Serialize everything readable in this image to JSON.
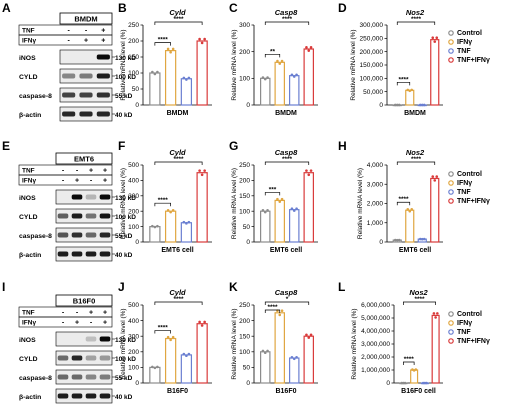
{
  "panel_letters": [
    "A",
    "B",
    "C",
    "D",
    "E",
    "F",
    "G",
    "H",
    "I",
    "J",
    "K",
    "L"
  ],
  "legend": {
    "items": [
      {
        "label": "Control",
        "color": "#8c8c8c"
      },
      {
        "label": "IFNγ",
        "color": "#e0a640"
      },
      {
        "label": "TNF",
        "color": "#6a7fd1"
      },
      {
        "label": "TNF+IFNγ",
        "color": "#d93a3a"
      }
    ]
  },
  "blots": [
    {
      "id": "A",
      "cell_line": "BMDM",
      "treatments": [
        {
          "label": "TNF",
          "marks": [
            "-",
            "-",
            "+"
          ]
        },
        {
          "label": "IFNγ",
          "marks": [
            "-",
            "+",
            "+"
          ]
        }
      ],
      "bands": [
        {
          "label": "iNOS",
          "kd": "130 kD"
        },
        {
          "label": "CYLD",
          "kd": "100 kD"
        },
        {
          "label": "caspase-8",
          "kd": "55 kD"
        },
        {
          "label": "β-actin",
          "kd": "40 kD"
        }
      ]
    },
    {
      "id": "E",
      "cell_line": "EMT6",
      "treatments": [
        {
          "label": "TNF",
          "marks": [
            "-",
            "-",
            "+",
            "+"
          ]
        },
        {
          "label": "IFNγ",
          "marks": [
            "-",
            "+",
            "-",
            "+"
          ]
        }
      ],
      "bands": [
        {
          "label": "iNOS",
          "kd": "130 kD"
        },
        {
          "label": "CYLD",
          "kd": "100 kD"
        },
        {
          "label": "caspase-8",
          "kd": "55 kD"
        },
        {
          "label": "β-actin",
          "kd": "40 kD"
        }
      ]
    },
    {
      "id": "I",
      "cell_line": "B16F0",
      "treatments": [
        {
          "label": "TNF",
          "marks": [
            "-",
            "-",
            "+",
            "+"
          ]
        },
        {
          "label": "IFNγ",
          "marks": [
            "-",
            "+",
            "-",
            "+"
          ]
        }
      ],
      "bands": [
        {
          "label": "iNOS",
          "kd": "130 kD"
        },
        {
          "label": "CYLD",
          "kd": "100 kD"
        },
        {
          "label": "caspase-8",
          "kd": "55 kD"
        },
        {
          "label": "β-actin",
          "kd": "40 kD"
        }
      ]
    }
  ],
  "chart_data": [
    {
      "id": "B",
      "type": "bar",
      "title": "Cyld",
      "xlabel": "BMDM",
      "ylabel": "Relative mRNA level (%)",
      "categories": [
        "Control",
        "IFNγ",
        "TNF",
        "TNF+IFNγ"
      ],
      "values": [
        100,
        170,
        82,
        200
      ],
      "ylim": [
        0,
        250
      ],
      "yticks": [
        0,
        50,
        100,
        150,
        200,
        250
      ],
      "significance": [
        "****",
        "****"
      ]
    },
    {
      "id": "C",
      "type": "bar",
      "title": "Casp8",
      "xlabel": "BMDM",
      "ylabel": "Relative mRNA level (%)",
      "categories": [
        "Control",
        "IFNγ",
        "TNF",
        "TNF+IFNγ"
      ],
      "values": [
        100,
        160,
        110,
        210
      ],
      "ylim": [
        0,
        300
      ],
      "yticks": [
        0,
        100,
        200,
        300
      ],
      "significance": [
        "**",
        "****"
      ]
    },
    {
      "id": "D",
      "type": "bar",
      "title": "Nos2",
      "xlabel": "BMDM",
      "ylabel": "Relative mRNA level (%)",
      "categories": [
        "Control",
        "IFNγ",
        "TNF",
        "TNF+IFNγ"
      ],
      "values": [
        100,
        55000,
        100,
        245000
      ],
      "ylim": [
        0,
        300000
      ],
      "yticks": [
        0,
        50000,
        100000,
        150000,
        200000,
        250000,
        300000
      ],
      "significance": [
        "****",
        "****"
      ]
    },
    {
      "id": "F",
      "type": "bar",
      "title": "Cyld",
      "xlabel": "EMT6 cell",
      "ylabel": "Relative mRNA level (%)",
      "categories": [
        "Control",
        "IFNγ",
        "TNF",
        "TNF+IFNγ"
      ],
      "values": [
        100,
        200,
        125,
        450
      ],
      "ylim": [
        0,
        500
      ],
      "yticks": [
        0,
        100,
        200,
        300,
        400,
        500
      ],
      "significance": [
        "****",
        "****"
      ]
    },
    {
      "id": "G",
      "type": "bar",
      "title": "Casp8",
      "xlabel": "EMT6 cell",
      "ylabel": "Relative mRNA level (%)",
      "categories": [
        "Control",
        "IFNγ",
        "TNF",
        "TNF+IFNγ"
      ],
      "values": [
        100,
        135,
        105,
        225
      ],
      "ylim": [
        0,
        250
      ],
      "yticks": [
        0,
        50,
        100,
        150,
        200,
        250
      ],
      "significance": [
        "***",
        "****"
      ]
    },
    {
      "id": "H",
      "type": "bar",
      "title": "Nos2",
      "xlabel": "EMT6 cell",
      "ylabel": "Relative mRNA level (%)",
      "categories": [
        "Control",
        "IFNγ",
        "TNF",
        "TNF+IFNγ"
      ],
      "values": [
        100,
        1650,
        150,
        3300
      ],
      "ylim": [
        0,
        4000
      ],
      "yticks": [
        0,
        1000,
        2000,
        3000,
        4000
      ],
      "significance": [
        "****",
        "****"
      ]
    },
    {
      "id": "J",
      "type": "bar",
      "title": "Cyld",
      "xlabel": "B16F0",
      "ylabel": "Relative mRNA level (%)",
      "categories": [
        "Control",
        "IFNγ",
        "TNF",
        "TNF+IFNγ"
      ],
      "values": [
        100,
        285,
        180,
        380
      ],
      "ylim": [
        0,
        500
      ],
      "yticks": [
        0,
        100,
        200,
        300,
        400,
        500
      ],
      "significance": [
        "****",
        "****"
      ]
    },
    {
      "id": "K",
      "type": "bar",
      "title": "Casp8",
      "xlabel": "B16F0",
      "ylabel": "Relative mRNA level (%)",
      "categories": [
        "Control",
        "IFNγ",
        "TNF",
        "TNF+IFNγ"
      ],
      "values": [
        100,
        225,
        80,
        150
      ],
      "ylim": [
        0,
        250
      ],
      "yticks": [
        0,
        50,
        100,
        150,
        200,
        250
      ],
      "significance": [
        "****",
        "*"
      ]
    },
    {
      "id": "L",
      "type": "bar",
      "title": "Nos2",
      "xlabel": "B16F0 cell",
      "ylabel": "Relative mRNA level (%)",
      "categories": [
        "Control",
        "IFNγ",
        "TNF",
        "TNF+IFNγ"
      ],
      "values": [
        100,
        1000000,
        100,
        5200000
      ],
      "ylim": [
        0,
        6000000
      ],
      "yticks": [
        0,
        1000000,
        2000000,
        3000000,
        4000000,
        5000000,
        6000000
      ],
      "significance": [
        "****",
        "****"
      ]
    }
  ]
}
